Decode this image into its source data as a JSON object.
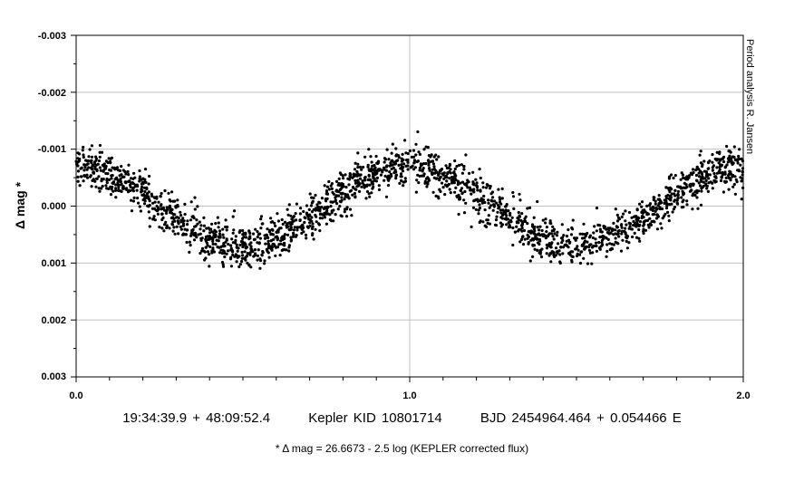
{
  "chart_data": {
    "type": "scatter",
    "ylabel": "Δ mag *",
    "xlim": [
      0.0,
      2.0
    ],
    "ylim": [
      -0.003,
      0.003
    ],
    "y_inverted": true,
    "x_ticks": [
      "0.0",
      "1.0",
      "2.0"
    ],
    "y_ticks": [
      "-0.003",
      "-0.002",
      "-0.001",
      "0.000",
      "0.001",
      "0.002",
      "0.003"
    ],
    "grid": true,
    "marker_color": "#000000",
    "series": [
      {
        "phase_max_brightness": [
          0.0,
          1.0,
          2.0
        ],
        "phase_min_brightness": [
          0.5,
          1.5
        ],
        "mean_dmag_at_max": -0.0007,
        "mean_dmag_at_min": 0.0007,
        "scatter_range": 0.0006
      }
    ],
    "credit": "Period analysis  R. Jansen",
    "captions": {
      "coords": "19:34:39.9 + 48:09:52.4",
      "target": "Kepler KID 10801714",
      "ephemeris": "BJD 2454964.464 + 0.054466 E"
    },
    "footnote": "* Δ mag = 26.6673 - 2.5 log (KEPLER corrected flux)"
  }
}
